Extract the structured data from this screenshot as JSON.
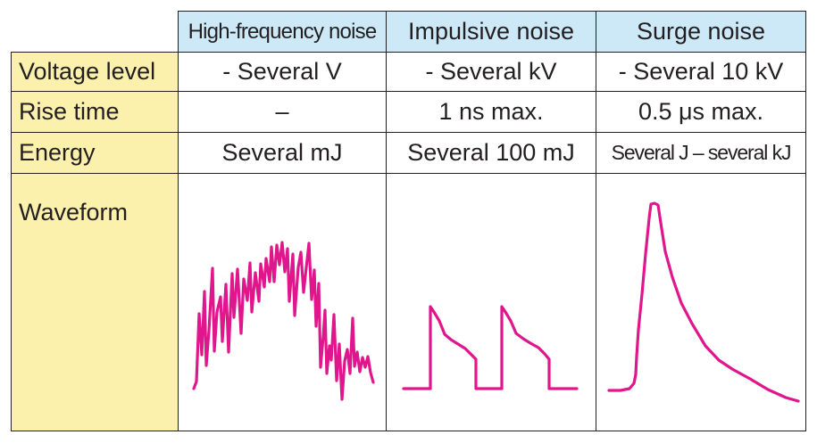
{
  "columns": [
    {
      "label": "High-frequency noise"
    },
    {
      "label": "Impulsive noise"
    },
    {
      "label": "Surge noise"
    }
  ],
  "rows": [
    {
      "label": "Voltage level",
      "values": [
        "- Several V",
        "- Several kV",
        "- Several 10 kV"
      ]
    },
    {
      "label": "Rise time",
      "values": [
        "–",
        "1 ns max.",
        "0.5 μs max."
      ]
    },
    {
      "label": "Energy",
      "values": [
        "Several mJ",
        "Several 100 mJ",
        "Several J – several kJ"
      ]
    },
    {
      "label": "Waveform"
    }
  ],
  "waveforms": [
    {
      "name": "high-frequency-noise-waveform",
      "color": "#e0168c"
    },
    {
      "name": "impulsive-noise-waveform",
      "color": "#e0168c"
    },
    {
      "name": "surge-noise-waveform",
      "color": "#e0168c"
    }
  ],
  "colors": {
    "header_fill": "#cde9f8",
    "row_label_fill": "#fbf1ad",
    "waveform": "#e0168c",
    "grid_line": "#231f20"
  }
}
